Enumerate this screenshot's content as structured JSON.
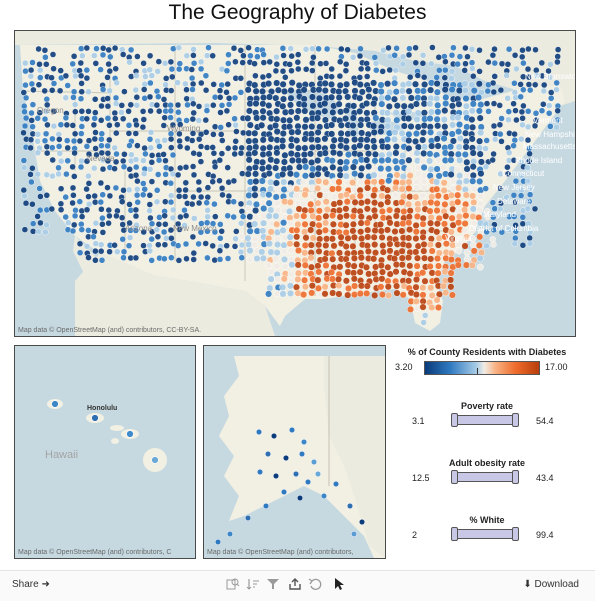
{
  "title": "The Geography of Diabetes",
  "map_main": {
    "attribution": "Map data © OpenStreetMap (and) contributors, CC-BY-SA.",
    "state_labels": [
      "Oregon",
      "Wyoming",
      "Nevada",
      "Arizona",
      "New Mexico"
    ],
    "northeast_labels": [
      "New Brunswick",
      "Vermont",
      "New Hampshire",
      "Massachusetts",
      "Rhode Island",
      "Connecticut",
      "New Jersey",
      "Delaware",
      "Maryland",
      "District of Columbia",
      "Virginia"
    ]
  },
  "map_hawaii": {
    "label": "Hawaii",
    "city": "Honolulu",
    "attribution": "Map data © OpenStreetMap (and) contributors, C"
  },
  "map_alaska": {
    "attribution": "Map data © OpenStreetMap (and) contributors,"
  },
  "legend": {
    "title": "% of County Residents with Diabetes",
    "min": "3.20",
    "max": "17.00",
    "colors": [
      "#0b3b7a",
      "#2f79c0",
      "#a7cbe6",
      "#f1ece6",
      "#f8b182",
      "#ee6a2a",
      "#b83e0c"
    ]
  },
  "filters": [
    {
      "title": "Poverty rate",
      "min": "3.1",
      "max": "54.4"
    },
    {
      "title": "Adult obesity rate",
      "min": "12.5",
      "max": "43.4"
    },
    {
      "title": "% White",
      "min": "2",
      "max": "99.4"
    }
  ],
  "toolbar": {
    "share_label": "Share ➜",
    "download_label": "⬇ Download",
    "icons": [
      "map-search-icon",
      "sort-icon",
      "filter-icon",
      "share-export-icon",
      "undo-icon",
      "pointer-icon"
    ]
  }
}
